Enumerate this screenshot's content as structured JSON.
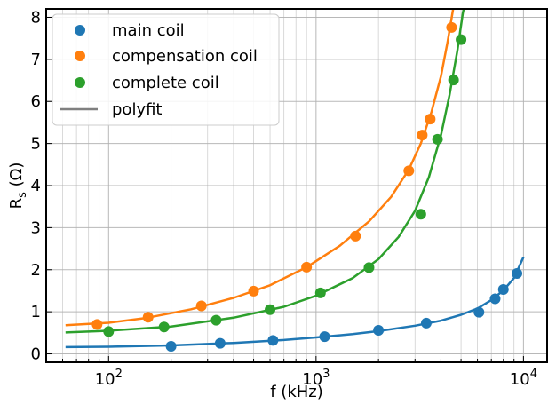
{
  "chart_data": {
    "type": "scatter",
    "xlabel": "f (kHz)",
    "ylabel_main": "R",
    "ylabel_sub": "s",
    "ylabel_unit": " (Ω)",
    "xscale": "log",
    "xlim": [
      50,
      13000
    ],
    "ylim": [
      -0.2,
      8.2
    ],
    "grid": "major and minor",
    "legend_position": "top-left",
    "x_ticks": [
      {
        "value": 100,
        "base": "10",
        "exp": "2"
      },
      {
        "value": 1000,
        "base": "10",
        "exp": "3"
      },
      {
        "value": 10000,
        "base": "10",
        "exp": "4"
      }
    ],
    "y_ticks": [
      "0",
      "1",
      "2",
      "3",
      "4",
      "5",
      "6",
      "7",
      "8"
    ],
    "series": [
      {
        "name": "main coil",
        "color": "#1f77b4",
        "points": [
          {
            "x": 200,
            "y": 0.18
          },
          {
            "x": 345,
            "y": 0.25
          },
          {
            "x": 620,
            "y": 0.32
          },
          {
            "x": 1100,
            "y": 0.41
          },
          {
            "x": 2000,
            "y": 0.56
          },
          {
            "x": 3400,
            "y": 0.73
          },
          {
            "x": 6100,
            "y": 0.99
          },
          {
            "x": 7300,
            "y": 1.31
          },
          {
            "x": 8000,
            "y": 1.53
          },
          {
            "x": 9300,
            "y": 1.91
          }
        ],
        "fit": [
          [
            62,
            0.16
          ],
          [
            100,
            0.17
          ],
          [
            200,
            0.2
          ],
          [
            400,
            0.26
          ],
          [
            700,
            0.33
          ],
          [
            1000,
            0.39
          ],
          [
            1500,
            0.47
          ],
          [
            2000,
            0.54
          ],
          [
            3000,
            0.67
          ],
          [
            4000,
            0.79
          ],
          [
            5000,
            0.93
          ],
          [
            6000,
            1.08
          ],
          [
            7000,
            1.28
          ],
          [
            8000,
            1.51
          ],
          [
            9000,
            1.8
          ],
          [
            10000,
            2.3
          ]
        ]
      },
      {
        "name": "compensation coil",
        "color": "#ff7f0e",
        "points": [
          {
            "x": 88,
            "y": 0.7
          },
          {
            "x": 155,
            "y": 0.87
          },
          {
            "x": 280,
            "y": 1.14
          },
          {
            "x": 500,
            "y": 1.49
          },
          {
            "x": 900,
            "y": 2.06
          },
          {
            "x": 1550,
            "y": 2.8
          },
          {
            "x": 2800,
            "y": 4.35
          },
          {
            "x": 3250,
            "y": 5.2
          },
          {
            "x": 3550,
            "y": 5.58
          },
          {
            "x": 4500,
            "y": 7.76
          }
        ],
        "fit": [
          [
            62,
            0.68
          ],
          [
            100,
            0.74
          ],
          [
            150,
            0.85
          ],
          [
            250,
            1.06
          ],
          [
            400,
            1.33
          ],
          [
            600,
            1.63
          ],
          [
            900,
            2.06
          ],
          [
            1300,
            2.57
          ],
          [
            1800,
            3.15
          ],
          [
            2300,
            3.73
          ],
          [
            2800,
            4.38
          ],
          [
            3200,
            5.0
          ],
          [
            3600,
            5.75
          ],
          [
            4000,
            6.6
          ],
          [
            4300,
            7.4
          ],
          [
            4600,
            8.25
          ]
        ]
      },
      {
        "name": "complete coil",
        "color": "#2ca02c",
        "points": [
          {
            "x": 100,
            "y": 0.53
          },
          {
            "x": 185,
            "y": 0.64
          },
          {
            "x": 330,
            "y": 0.8
          },
          {
            "x": 600,
            "y": 1.05
          },
          {
            "x": 1050,
            "y": 1.45
          },
          {
            "x": 1800,
            "y": 2.05
          },
          {
            "x": 3200,
            "y": 3.32
          },
          {
            "x": 3850,
            "y": 5.1
          },
          {
            "x": 4600,
            "y": 6.51
          },
          {
            "x": 5000,
            "y": 7.47
          }
        ],
        "fit": [
          [
            62,
            0.51
          ],
          [
            100,
            0.55
          ],
          [
            200,
            0.65
          ],
          [
            400,
            0.86
          ],
          [
            700,
            1.12
          ],
          [
            1000,
            1.38
          ],
          [
            1500,
            1.8
          ],
          [
            2000,
            2.25
          ],
          [
            2500,
            2.78
          ],
          [
            3000,
            3.4
          ],
          [
            3500,
            4.2
          ],
          [
            4000,
            5.2
          ],
          [
            4400,
            6.15
          ],
          [
            4800,
            7.2
          ],
          [
            5100,
            8.1
          ],
          [
            5200,
            8.3
          ]
        ]
      },
      {
        "name": "polyfit",
        "color": "#7f7f7f",
        "legend_only": true
      }
    ]
  }
}
